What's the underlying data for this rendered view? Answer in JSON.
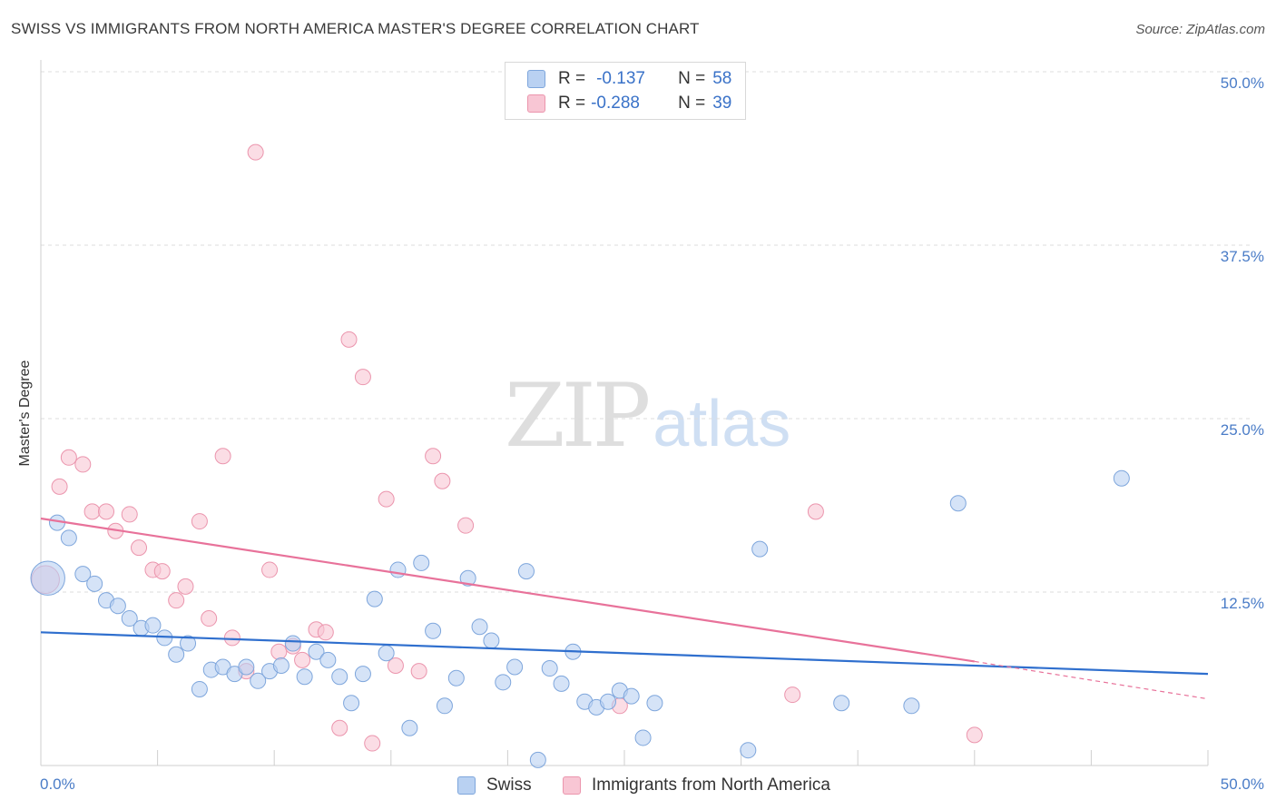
{
  "title": "SWISS VS IMMIGRANTS FROM NORTH AMERICA MASTER'S DEGREE CORRELATION CHART",
  "source": "Source: ZipAtlas.com",
  "watermark": {
    "part1": "ZIP",
    "part2": "atlas"
  },
  "legend_top": [
    {
      "r_label": "R =",
      "r_value": "-0.137",
      "n_label": "N =",
      "n_value": "58"
    },
    {
      "r_label": "R =",
      "r_value": "-0.288",
      "n_label": "N =",
      "n_value": "39"
    }
  ],
  "legend_bottom": [
    "Swiss",
    "Immigrants from North America"
  ],
  "colors": {
    "swiss_fill": "#b9d1f2",
    "swiss_stroke": "#7ea6dc",
    "swiss_line": "#2f6fce",
    "imm_fill": "#f8c6d4",
    "imm_stroke": "#eb95ad",
    "imm_line": "#e8729a",
    "tick_text": "#4a7cc7",
    "grid": "#dcdcdc"
  },
  "chart_data": {
    "type": "scatter",
    "title": "SWISS VS IMMIGRANTS FROM NORTH AMERICA MASTER'S DEGREE CORRELATION CHART",
    "xlabel": "",
    "ylabel": "Master's Degree",
    "xlim": [
      0,
      50
    ],
    "ylim": [
      0,
      50
    ],
    "x_tick_labels": [
      "0.0%",
      "50.0%"
    ],
    "y_ticks": [
      12.5,
      25.0,
      37.5,
      50.0
    ],
    "y_tick_labels": [
      "12.5%",
      "25.0%",
      "37.5%",
      "50.0%"
    ],
    "series": [
      {
        "name": "Swiss",
        "r": -0.137,
        "n": 58,
        "trend": {
          "x0": 0,
          "y0": 9.6,
          "x1": 50,
          "y1": 6.6
        },
        "points": [
          [
            0.3,
            13.5,
            2.2
          ],
          [
            0.7,
            17.5,
            1
          ],
          [
            1.2,
            16.4,
            1
          ],
          [
            1.8,
            13.8,
            1
          ],
          [
            2.3,
            13.1,
            1
          ],
          [
            2.8,
            11.9,
            1
          ],
          [
            3.3,
            11.5,
            1
          ],
          [
            3.8,
            10.6,
            1
          ],
          [
            4.3,
            9.9,
            1
          ],
          [
            4.8,
            10.1,
            1
          ],
          [
            5.3,
            9.2,
            1
          ],
          [
            5.8,
            8.0,
            1
          ],
          [
            6.3,
            8.8,
            1
          ],
          [
            6.8,
            5.5,
            1
          ],
          [
            7.3,
            6.9,
            1
          ],
          [
            7.8,
            7.1,
            1
          ],
          [
            8.3,
            6.6,
            1
          ],
          [
            8.8,
            7.1,
            1
          ],
          [
            9.3,
            6.1,
            1
          ],
          [
            9.8,
            6.8,
            1
          ],
          [
            10.3,
            7.2,
            1
          ],
          [
            10.8,
            8.8,
            1
          ],
          [
            11.3,
            6.4,
            1
          ],
          [
            11.8,
            8.2,
            1
          ],
          [
            12.3,
            7.6,
            1
          ],
          [
            12.8,
            6.4,
            1
          ],
          [
            13.3,
            4.5,
            1
          ],
          [
            13.8,
            6.6,
            1
          ],
          [
            14.3,
            12.0,
            1
          ],
          [
            14.8,
            8.1,
            1
          ],
          [
            15.3,
            14.1,
            1
          ],
          [
            15.8,
            2.7,
            1
          ],
          [
            16.3,
            14.6,
            1
          ],
          [
            16.8,
            9.7,
            1
          ],
          [
            17.3,
            4.3,
            1
          ],
          [
            17.8,
            6.3,
            1
          ],
          [
            18.3,
            13.5,
            1
          ],
          [
            18.8,
            10.0,
            1
          ],
          [
            19.3,
            9.0,
            1
          ],
          [
            19.8,
            6.0,
            1
          ],
          [
            20.3,
            7.1,
            1
          ],
          [
            20.8,
            14.0,
            1
          ],
          [
            21.3,
            0.4,
            1
          ],
          [
            21.8,
            7.0,
            1
          ],
          [
            22.3,
            5.9,
            1
          ],
          [
            22.8,
            8.2,
            1
          ],
          [
            23.3,
            4.6,
            1
          ],
          [
            23.8,
            4.2,
            1
          ],
          [
            24.3,
            4.6,
            1
          ],
          [
            24.8,
            5.4,
            1
          ],
          [
            25.3,
            5.0,
            1
          ],
          [
            25.8,
            2.0,
            1
          ],
          [
            26.3,
            4.5,
            1
          ],
          [
            30.3,
            1.1,
            1
          ],
          [
            30.8,
            15.6,
            1
          ],
          [
            34.3,
            4.5,
            1
          ],
          [
            37.3,
            4.3,
            1
          ],
          [
            39.3,
            18.9,
            1
          ],
          [
            46.3,
            20.7,
            1
          ]
        ]
      },
      {
        "name": "Immigrants from North America",
        "r": -0.288,
        "n": 39,
        "trend": {
          "x0": 0,
          "y0": 17.8,
          "x1": 40,
          "y1": 7.5,
          "dash_x1": 50,
          "dash_y1": 4.8
        },
        "points": [
          [
            0.2,
            13.4,
            1.8
          ],
          [
            0.8,
            20.1,
            1
          ],
          [
            1.2,
            22.2,
            1
          ],
          [
            1.8,
            21.7,
            1
          ],
          [
            2.2,
            18.3,
            1
          ],
          [
            2.8,
            18.3,
            1
          ],
          [
            3.2,
            16.9,
            1
          ],
          [
            3.8,
            18.1,
            1
          ],
          [
            4.2,
            15.7,
            1
          ],
          [
            4.8,
            14.1,
            1
          ],
          [
            5.2,
            14.0,
            1
          ],
          [
            5.8,
            11.9,
            1
          ],
          [
            6.2,
            12.9,
            1
          ],
          [
            6.8,
            17.6,
            1
          ],
          [
            7.2,
            10.6,
            1
          ],
          [
            7.8,
            22.3,
            1
          ],
          [
            8.2,
            9.2,
            1
          ],
          [
            8.8,
            6.8,
            1
          ],
          [
            9.2,
            44.2,
            1
          ],
          [
            9.8,
            14.1,
            1
          ],
          [
            10.2,
            8.2,
            1
          ],
          [
            10.8,
            8.6,
            1
          ],
          [
            11.2,
            7.6,
            1
          ],
          [
            11.8,
            9.8,
            1
          ],
          [
            12.2,
            9.6,
            1
          ],
          [
            12.8,
            2.7,
            1
          ],
          [
            13.2,
            30.7,
            1
          ],
          [
            13.8,
            28.0,
            1
          ],
          [
            14.2,
            1.6,
            1
          ],
          [
            14.8,
            19.2,
            1
          ],
          [
            15.2,
            7.2,
            1
          ],
          [
            16.2,
            6.8,
            1
          ],
          [
            16.8,
            22.3,
            1
          ],
          [
            17.2,
            20.5,
            1
          ],
          [
            18.2,
            17.3,
            1
          ],
          [
            24.8,
            4.3,
            1
          ],
          [
            32.2,
            5.1,
            1
          ],
          [
            33.2,
            18.3,
            1
          ],
          [
            40.0,
            2.2,
            1
          ]
        ]
      }
    ]
  }
}
